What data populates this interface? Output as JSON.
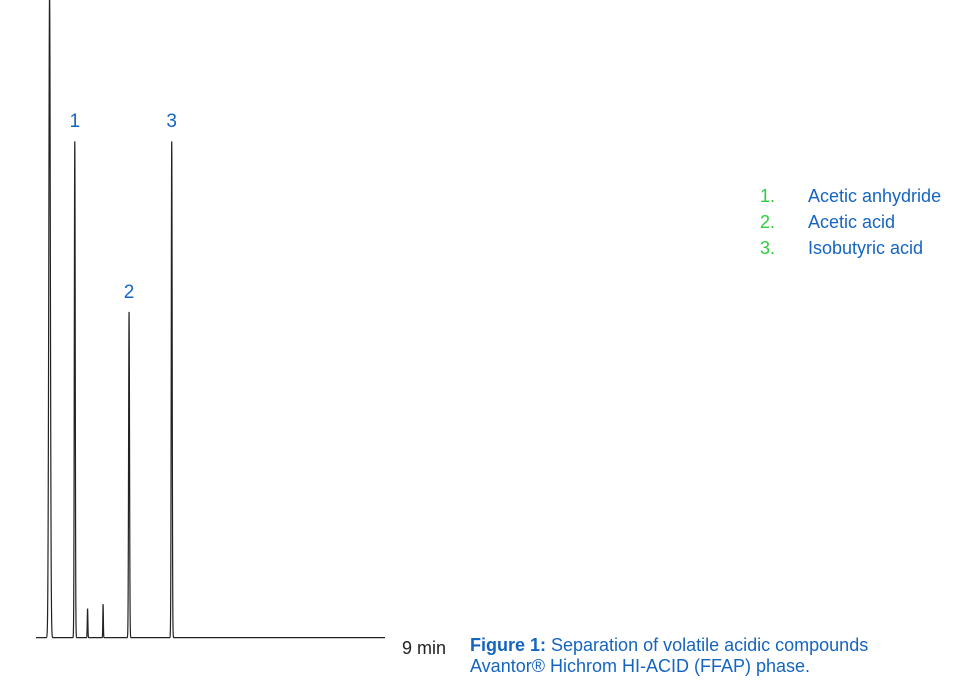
{
  "chart_data": {
    "type": "line",
    "x_end_label": "9 min",
    "xlim": [
      0,
      9
    ],
    "ylim": [
      0,
      100
    ],
    "baseline": 3,
    "peaks": [
      {
        "id": "solvent",
        "label": "",
        "rt": 0.35,
        "height": 100,
        "width": 0.02
      },
      {
        "id": "p1",
        "label": "1",
        "rt": 1.0,
        "height": 77,
        "width": 0.012
      },
      {
        "id": "m1",
        "label": "",
        "rt": 1.33,
        "height": 4.5,
        "width": 0.008
      },
      {
        "id": "m2",
        "label": "",
        "rt": 1.73,
        "height": 5.2,
        "width": 0.007
      },
      {
        "id": "p2",
        "label": "2",
        "rt": 2.4,
        "height": 50.5,
        "width": 0.012
      },
      {
        "id": "p3",
        "label": "3",
        "rt": 3.5,
        "height": 77,
        "width": 0.012
      }
    ]
  },
  "legend": [
    {
      "num": "1.",
      "name": "Acetic anhydride",
      "num_color": "#2ecc40"
    },
    {
      "num": "2.",
      "name": "Acetic acid",
      "num_color": "#2ecc40"
    },
    {
      "num": "3.",
      "name": "Isobutyric acid",
      "num_color": "#2ecc40"
    }
  ],
  "caption": {
    "bold": "Figure 1:",
    "line1": " Separation of volatile acidic compounds",
    "line2": "Avantor® Hichrom HI-ACID (FFAP) phase."
  },
  "colors": {
    "trace": "#222222",
    "label": "#1565c0",
    "legend_number": "#2ecc40"
  }
}
